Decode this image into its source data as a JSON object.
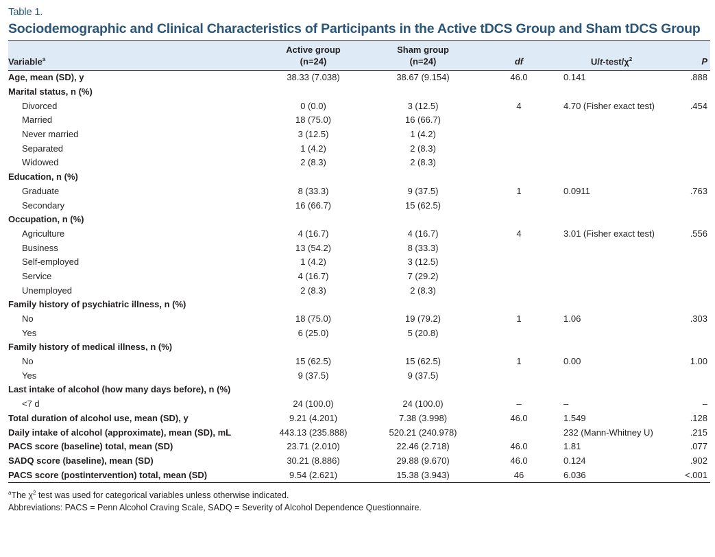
{
  "table_label": "Table 1.",
  "title": "Sociodemographic and Clinical Characteristics of Participants in the Active tDCS Group and Sham tDCS Group",
  "columns": {
    "variable": "Variable",
    "variable_sup": "a",
    "active": "Active group",
    "active_n": "(n=24)",
    "sham": "Sham group",
    "sham_n": "(n=24)",
    "df": "df",
    "test_pre": "U/",
    "test_t": "t",
    "test_post": "-test/χ",
    "test_sup": "2",
    "p": "P"
  },
  "rows": [
    {
      "type": "header",
      "label": "Age, mean (SD), y",
      "active": "38.33 (7.038)",
      "sham": "38.67 (9.154)",
      "df": "46.0",
      "test": "0.141",
      "p": ".888"
    },
    {
      "type": "header",
      "label": "Marital status, n (%)",
      "active": "",
      "sham": "",
      "df": "",
      "test": "",
      "p": ""
    },
    {
      "type": "sub",
      "label": "Divorced",
      "active": "0 (0.0)",
      "sham": "3 (12.5)",
      "df": "4",
      "test": "4.70 (Fisher exact test)",
      "p": ".454"
    },
    {
      "type": "sub",
      "label": "Married",
      "active": "18 (75.0)",
      "sham": "16 (66.7)",
      "df": "",
      "test": "",
      "p": ""
    },
    {
      "type": "sub",
      "label": "Never married",
      "active": "3 (12.5)",
      "sham": "1 (4.2)",
      "df": "",
      "test": "",
      "p": ""
    },
    {
      "type": "sub",
      "label": "Separated",
      "active": "1 (4.2)",
      "sham": "2 (8.3)",
      "df": "",
      "test": "",
      "p": ""
    },
    {
      "type": "sub",
      "label": "Widowed",
      "active": "2 (8.3)",
      "sham": "2 (8.3)",
      "df": "",
      "test": "",
      "p": ""
    },
    {
      "type": "header",
      "label": "Education, n (%)",
      "active": "",
      "sham": "",
      "df": "",
      "test": "",
      "p": ""
    },
    {
      "type": "sub",
      "label": "Graduate",
      "active": "8 (33.3)",
      "sham": "9 (37.5)",
      "df": "1",
      "test": "0.0911",
      "p": ".763"
    },
    {
      "type": "sub",
      "label": "Secondary",
      "active": "16 (66.7)",
      "sham": "15 (62.5)",
      "df": "",
      "test": "",
      "p": ""
    },
    {
      "type": "header",
      "label": "Occupation, n (%)",
      "active": "",
      "sham": "",
      "df": "",
      "test": "",
      "p": ""
    },
    {
      "type": "sub",
      "label": "Agriculture",
      "active": "4 (16.7)",
      "sham": "4 (16.7)",
      "df": "4",
      "test": "3.01 (Fisher exact test)",
      "p": ".556"
    },
    {
      "type": "sub",
      "label": "Business",
      "active": "13 (54.2)",
      "sham": "8 (33.3)",
      "df": "",
      "test": "",
      "p": ""
    },
    {
      "type": "sub",
      "label": "Self-employed",
      "active": "1 (4.2)",
      "sham": "3 (12.5)",
      "df": "",
      "test": "",
      "p": ""
    },
    {
      "type": "sub",
      "label": "Service",
      "active": "4 (16.7)",
      "sham": "7 (29.2)",
      "df": "",
      "test": "",
      "p": ""
    },
    {
      "type": "sub",
      "label": "Unemployed",
      "active": "2 (8.3)",
      "sham": "2 (8.3)",
      "df": "",
      "test": "",
      "p": ""
    },
    {
      "type": "header",
      "label": "Family history of psychiatric illness, n (%)",
      "active": "",
      "sham": "",
      "df": "",
      "test": "",
      "p": ""
    },
    {
      "type": "sub",
      "label": "No",
      "active": "18 (75.0)",
      "sham": "19 (79.2)",
      "df": "1",
      "test": "1.06",
      "p": ".303"
    },
    {
      "type": "sub",
      "label": "Yes",
      "active": "6 (25.0)",
      "sham": "5 (20.8)",
      "df": "",
      "test": "",
      "p": ""
    },
    {
      "type": "header",
      "label": "Family history of medical illness, n (%)",
      "active": "",
      "sham": "",
      "df": "",
      "test": "",
      "p": ""
    },
    {
      "type": "sub",
      "label": "No",
      "active": "15 (62.5)",
      "sham": "15 (62.5)",
      "df": "1",
      "test": "0.00",
      "p": "1.00"
    },
    {
      "type": "sub",
      "label": "Yes",
      "active": "9 (37.5)",
      "sham": "9 (37.5)",
      "df": "",
      "test": "",
      "p": ""
    },
    {
      "type": "header",
      "label": "Last intake of alcohol (how many days before), n (%)",
      "active": "",
      "sham": "",
      "df": "",
      "test": "",
      "p": ""
    },
    {
      "type": "sub",
      "label": "<7 d",
      "active": "24 (100.0)",
      "sham": "24 (100.0)",
      "df": "–",
      "test": "–",
      "p": "–"
    },
    {
      "type": "header",
      "label": "Total duration of alcohol use, mean (SD), y",
      "active": "9.21 (4.201)",
      "sham": "7.38 (3.998)",
      "df": "46.0",
      "test": "1.549",
      "p": ".128"
    },
    {
      "type": "header",
      "label": "Daily intake of alcohol (approximate), mean (SD), mL",
      "active": "443.13 (235.888)",
      "sham": "520.21 (240.978)",
      "df": "",
      "test": "232 (Mann-Whitney U)",
      "p": ".215"
    },
    {
      "type": "header",
      "label": "PACS score (baseline) total, mean (SD)",
      "active": "23.71 (2.010)",
      "sham": "22.46 (2.718)",
      "df": "46.0",
      "test": "1.81",
      "p": ".077"
    },
    {
      "type": "header",
      "label": "SADQ score (baseline), mean (SD)",
      "active": "30.21 (8.886)",
      "sham": "29.88 (9.670)",
      "df": "46.0",
      "test": "0.124",
      "p": ".902"
    },
    {
      "type": "header",
      "label": "PACS score (postintervention) total, mean (SD)",
      "active": "9.54 (2.621)",
      "sham": "15.38 (3.943)",
      "df": "46",
      "test": "6.036",
      "p": "<.001"
    }
  ],
  "footnotes": {
    "note_sup": "a",
    "note_pre": "The χ",
    "note_chi_sup": "2",
    "note_post": " test was used for categorical variables unless otherwise indicated.",
    "abbreviations": "Abbreviations: PACS = Penn Alcohol Craving Scale, SADQ = Severity of Alcohol Dependence Questionnaire."
  }
}
